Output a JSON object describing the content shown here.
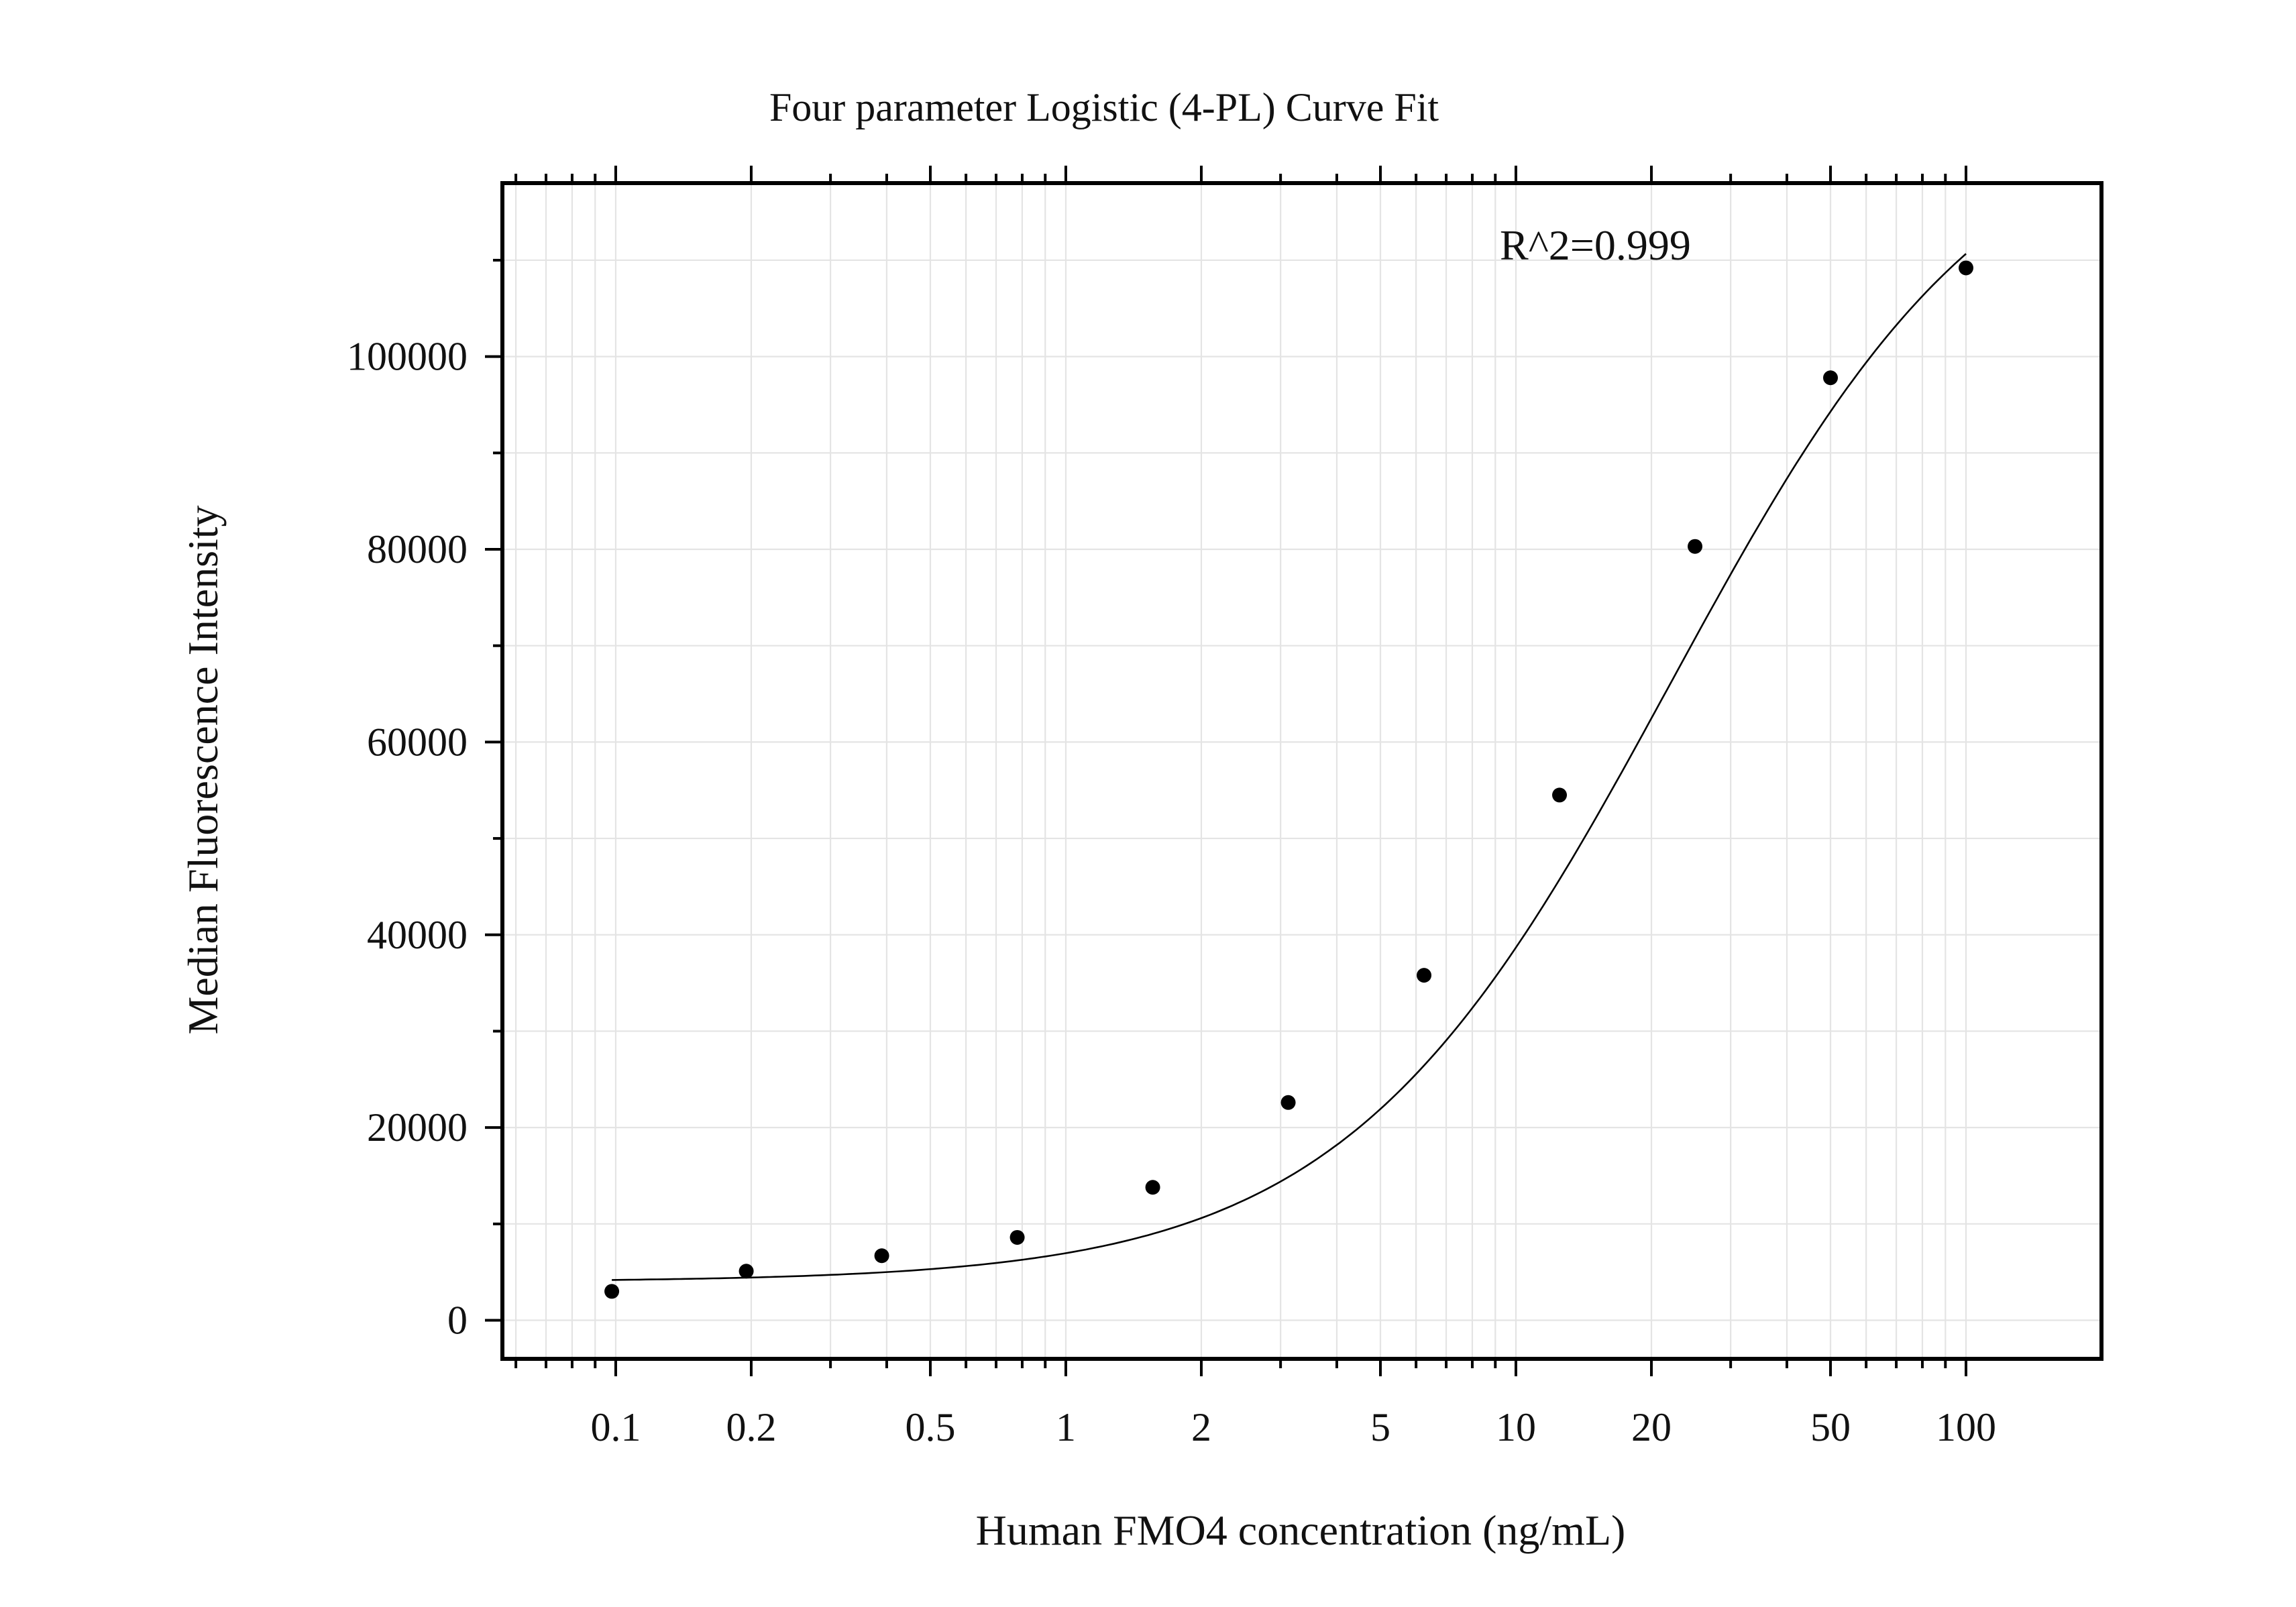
{
  "chart_data": {
    "type": "scatter",
    "title": "Four parameter Logistic (4-PL) Curve Fit",
    "xlabel": "Human FMO4 concentration (ng/mL)",
    "ylabel": "Median Fluorescence Intensity",
    "x_scale": "log",
    "xlim": [
      0.056,
      200
    ],
    "ylim": [
      -4000,
      118000
    ],
    "x_ticks": [
      0.1,
      0.2,
      0.5,
      1,
      2,
      5,
      10,
      20,
      50,
      100
    ],
    "x_tick_labels": [
      "0.1",
      "0.2",
      "0.5",
      "1",
      "2",
      "5",
      "10",
      "20",
      "50",
      "100"
    ],
    "y_ticks": [
      0,
      20000,
      40000,
      60000,
      80000,
      100000
    ],
    "y_tick_labels": [
      "0",
      "20000",
      "40000",
      "60000",
      "80000",
      "100000"
    ],
    "grid": true,
    "annotation": "R^2=0.999",
    "points": [
      {
        "x": 0.098,
        "y": 3000
      },
      {
        "x": 0.195,
        "y": 5100
      },
      {
        "x": 0.39,
        "y": 6700
      },
      {
        "x": 0.78,
        "y": 8600
      },
      {
        "x": 1.56,
        "y": 13800
      },
      {
        "x": 3.12,
        "y": 22600
      },
      {
        "x": 6.25,
        "y": 35800
      },
      {
        "x": 12.5,
        "y": 54500
      },
      {
        "x": 25,
        "y": 80300
      },
      {
        "x": 50,
        "y": 97800
      },
      {
        "x": 100,
        "y": 109200
      }
    ],
    "fit": {
      "model": "4PL",
      "A": 4000,
      "B": 1.2,
      "C": 22,
      "D": 128000,
      "x_range": [
        0.098,
        100
      ]
    }
  }
}
